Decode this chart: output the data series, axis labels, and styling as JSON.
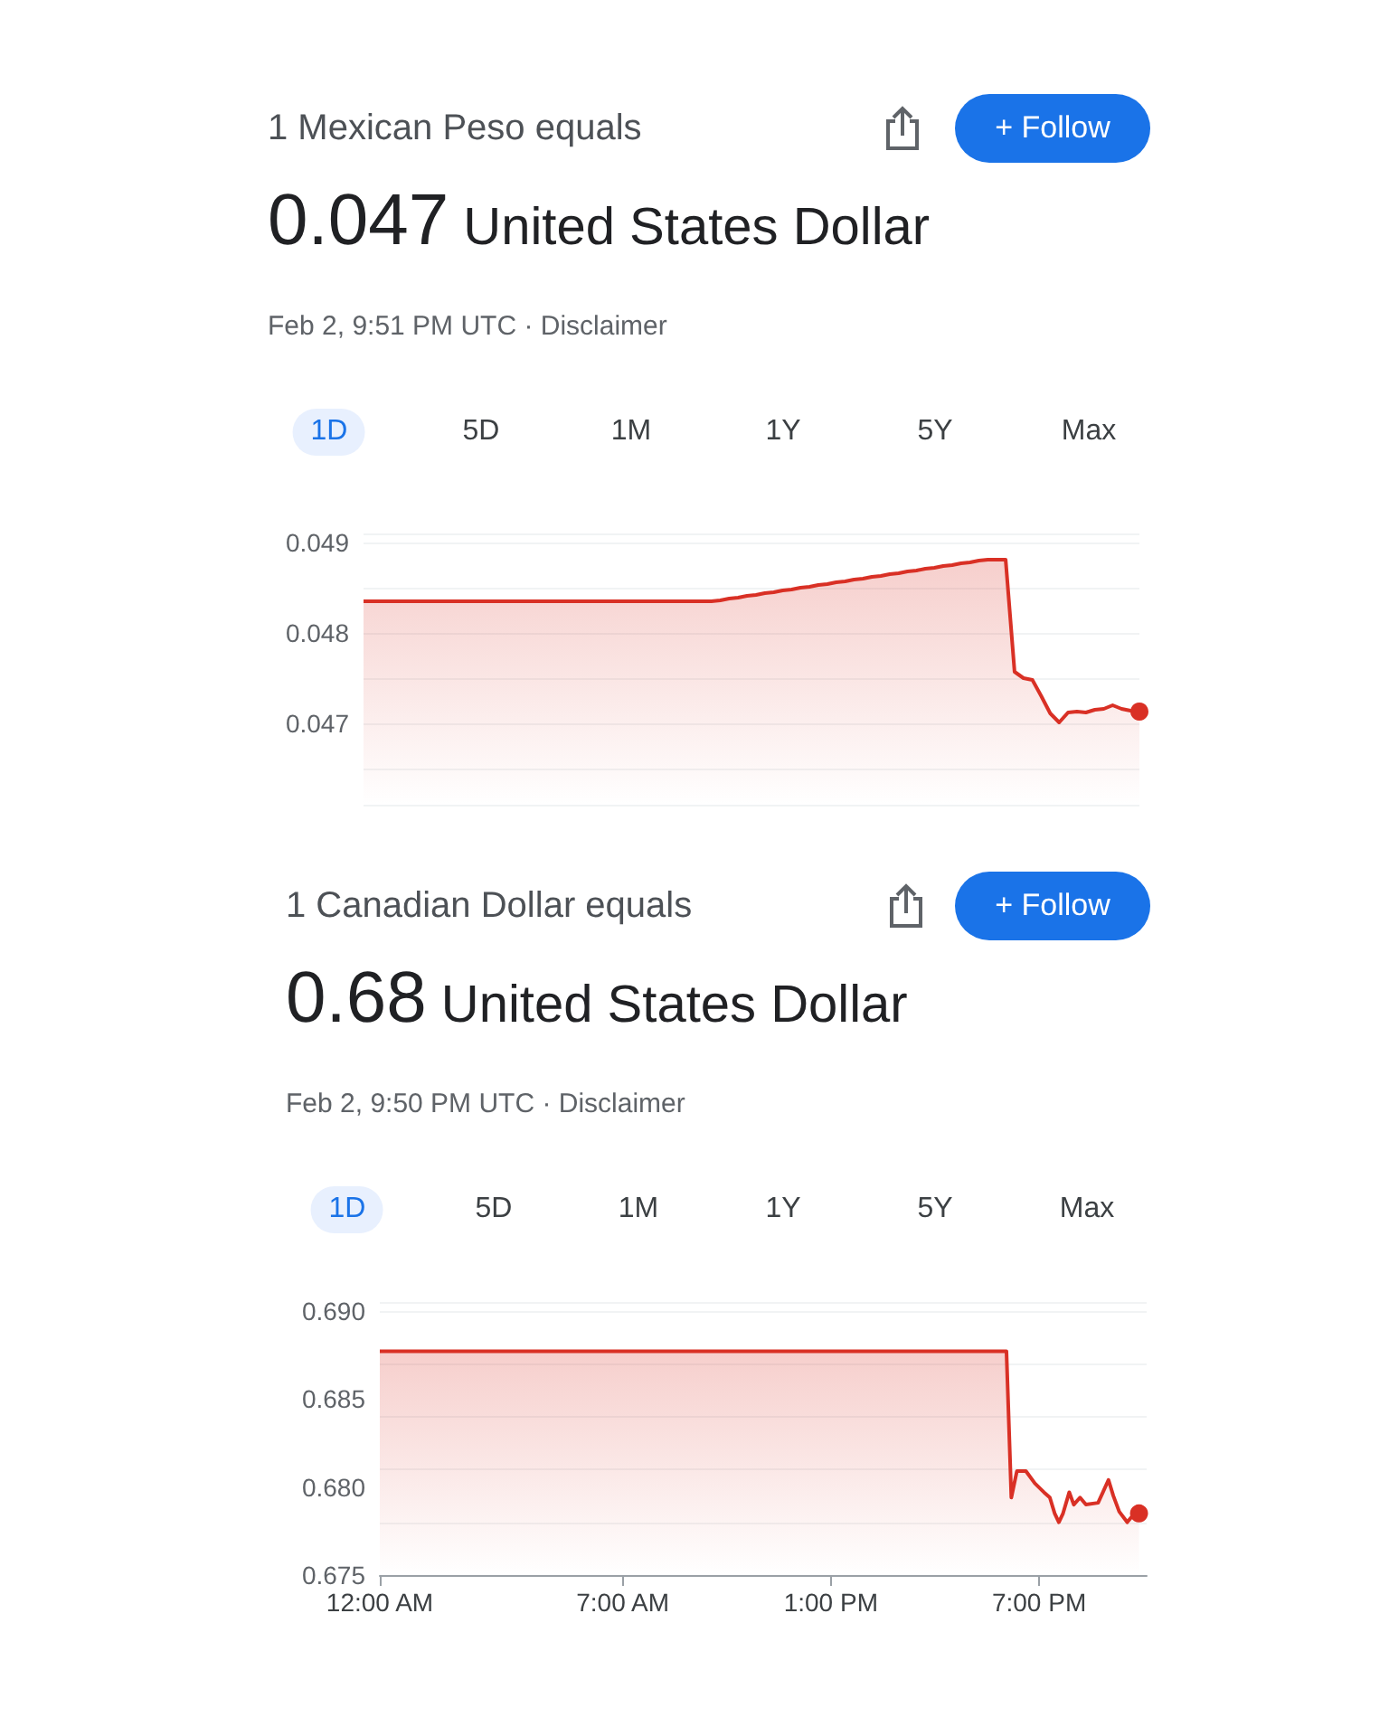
{
  "chart_data": [
    {
      "type": "area",
      "title": "1 Mexican Peso equals",
      "subtitle": "0.047 United States Dollar",
      "annotations": [
        "Feb 2, 9:51 PM UTC · Disclaimer",
        "+ Follow",
        "1D",
        "5D",
        "1M",
        "1Y",
        "5Y",
        "Max"
      ],
      "categories": [
        null,
        null,
        null,
        null,
        null,
        null,
        null,
        null,
        null,
        null,
        null,
        null,
        null,
        null,
        null,
        null,
        null,
        null,
        null,
        null,
        null,
        null,
        null,
        null,
        null,
        null,
        null,
        null,
        null,
        null,
        null,
        null,
        null,
        null,
        null,
        null,
        null,
        null,
        null,
        null,
        null,
        null,
        null,
        null,
        null,
        null,
        null,
        null,
        null,
        null,
        null,
        null,
        null,
        null,
        null,
        null,
        null,
        null,
        null,
        null,
        null,
        null,
        null,
        null,
        null,
        null,
        null,
        null,
        null,
        null,
        null,
        null,
        null,
        null,
        null,
        null,
        null,
        null,
        null,
        null,
        null,
        null,
        null,
        null,
        null,
        null,
        null,
        null
      ],
      "values": [
        0.04835,
        0.04835,
        0.04835,
        0.04835,
        0.04835,
        0.04835,
        0.04835,
        0.04835,
        0.04835,
        0.04835,
        0.04835,
        0.04835,
        0.04835,
        0.04835,
        0.04835,
        0.04835,
        0.04835,
        0.04835,
        0.04835,
        0.04835,
        0.04835,
        0.04835,
        0.04835,
        0.04835,
        0.04835,
        0.04835,
        0.04835,
        0.04835,
        0.04835,
        0.04835,
        0.04835,
        0.04835,
        0.04835,
        0.04835,
        0.04835,
        0.04835,
        0.04835,
        0.04835,
        0.04835,
        0.04835,
        0.04836,
        0.04838,
        0.04839,
        0.04841,
        0.04842,
        0.04844,
        0.04845,
        0.04847,
        0.04848,
        0.0485,
        0.04851,
        0.04853,
        0.04854,
        0.04856,
        0.04857,
        0.04859,
        0.0486,
        0.04862,
        0.04863,
        0.04865,
        0.04866,
        0.04868,
        0.04869,
        0.04871,
        0.04872,
        0.04874,
        0.04875,
        0.04877,
        0.04878,
        0.0488,
        0.04881,
        0.04881,
        0.04881,
        0.04757,
        0.0475,
        0.04748,
        0.0473,
        0.04711,
        0.04701,
        0.04712,
        0.04713,
        0.04712,
        0.04715,
        0.04716,
        0.0472,
        0.04716,
        0.04714,
        0.04713
      ],
      "color": "#d93025",
      "ylim": [
        0.0461,
        0.0491
      ],
      "yticks": [
        0.047,
        0.048,
        0.049
      ],
      "grid": "y",
      "tick_labels": "y"
    },
    {
      "type": "area",
      "title": "1 Canadian Dollar equals",
      "subtitle": "0.68 United States Dollar",
      "annotations": [
        "Feb 2, 9:50 PM UTC · Disclaimer",
        "+ Follow",
        "1D",
        "5D",
        "1M",
        "1Y",
        "5Y",
        "Max"
      ],
      "x": [
        0,
        18.06,
        18.2,
        18.36,
        18.62,
        18.88,
        19.14,
        19.31,
        19.45,
        19.57,
        19.69,
        19.87,
        20.0,
        20.18,
        20.35,
        20.7,
        20.84,
        21.0,
        21.14,
        21.31,
        21.54,
        21.71,
        21.88
      ],
      "values": [
        0.6877,
        0.6877,
        0.6794,
        0.6809,
        0.6809,
        0.6802,
        0.6797,
        0.6794,
        0.6785,
        0.678,
        0.6785,
        0.6797,
        0.679,
        0.6794,
        0.679,
        0.6791,
        0.6797,
        0.6804,
        0.6795,
        0.6786,
        0.678,
        0.6784,
        0.6785
      ],
      "color": "#d93025",
      "xlim": [
        0,
        22.1
      ],
      "xticks": [
        {
          "value": 0,
          "label": "12:00 AM"
        },
        {
          "value": 7,
          "label": "7:00 AM"
        },
        {
          "value": 13,
          "label": "1:00 PM"
        },
        {
          "value": 19,
          "label": "7:00 PM"
        }
      ],
      "ylim": [
        0.675,
        0.6905
      ],
      "yticks": [
        {
          "value": 0.675,
          "label": "0.675"
        },
        {
          "value": 0.68,
          "label": "0.680"
        },
        {
          "value": 0.685,
          "label": "0.685"
        },
        {
          "value": 0.69,
          "label": "0.690"
        }
      ],
      "grid": "y"
    }
  ]
}
